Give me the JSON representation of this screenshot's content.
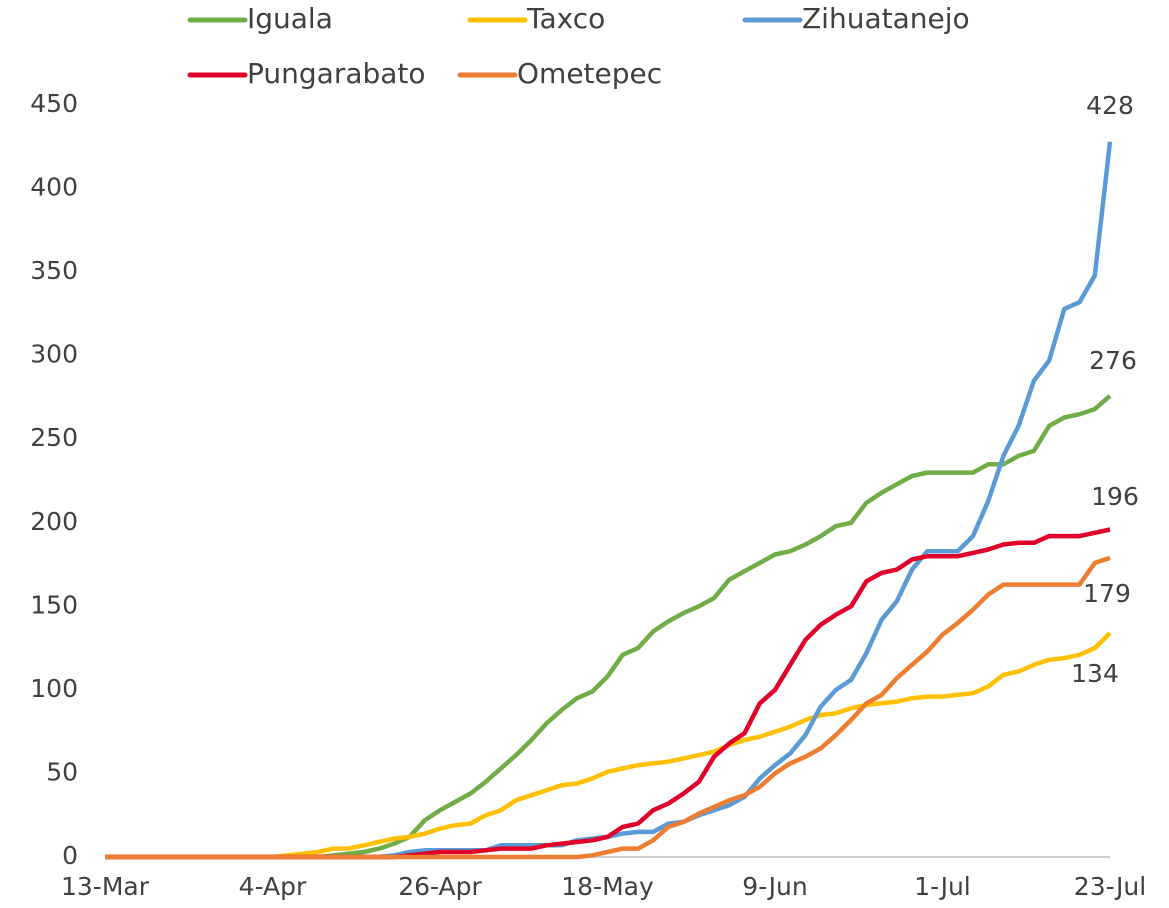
{
  "chart_data": {
    "type": "line",
    "categories": [
      "13-Mar",
      null,
      null,
      null,
      null,
      null,
      null,
      null,
      null,
      null,
      null,
      "4-Apr",
      null,
      null,
      null,
      null,
      null,
      null,
      null,
      null,
      null,
      null,
      "26-Apr",
      null,
      null,
      null,
      null,
      null,
      null,
      null,
      null,
      null,
      null,
      "18-May",
      null,
      null,
      null,
      null,
      null,
      null,
      null,
      null,
      null,
      null,
      "9-Jun",
      null,
      null,
      null,
      null,
      null,
      null,
      null,
      null,
      null,
      null,
      "1-Jul",
      null,
      null,
      null,
      null,
      null,
      null,
      null,
      null,
      null,
      null,
      "23-Jul"
    ],
    "series": [
      {
        "name": "Iguala",
        "color": "#70ad47",
        "values": [
          0,
          0,
          0,
          0,
          0,
          0,
          0,
          0,
          0,
          0,
          0,
          0,
          0,
          0,
          0,
          1,
          2,
          3,
          5,
          8,
          12,
          22,
          28,
          33,
          38,
          45,
          53,
          61,
          70,
          80,
          88,
          95,
          99,
          108,
          121,
          125,
          135,
          141,
          146,
          150,
          155,
          166,
          171,
          176,
          181,
          183,
          187,
          192,
          198,
          200,
          212,
          218,
          223,
          228,
          230,
          230,
          230,
          230,
          235,
          235,
          240,
          243,
          258,
          263,
          265,
          268,
          276
        ]
      },
      {
        "name": "Taxco",
        "color": "#ffc000",
        "values": [
          0,
          0,
          0,
          0,
          0,
          0,
          0,
          0,
          0,
          0,
          0,
          0,
          1,
          2,
          3,
          5,
          5,
          7,
          9,
          11,
          12,
          14,
          17,
          19,
          20,
          25,
          28,
          34,
          37,
          40,
          43,
          44,
          47,
          51,
          53,
          55,
          56,
          57,
          59,
          61,
          63,
          67,
          70,
          72,
          75,
          78,
          82,
          85,
          86,
          89,
          91,
          92,
          93,
          95,
          96,
          96,
          97,
          98,
          102,
          109,
          111,
          115,
          118,
          119,
          121,
          125,
          134
        ]
      },
      {
        "name": "Zihuatanejo",
        "color": "#5b9bd5",
        "values": [
          0,
          0,
          0,
          0,
          0,
          0,
          0,
          0,
          0,
          0,
          0,
          0,
          0,
          0,
          0,
          0,
          0,
          0,
          0,
          1,
          3,
          4,
          4,
          4,
          4,
          4,
          7,
          7,
          7,
          7,
          7,
          10,
          11,
          12,
          14,
          15,
          15,
          20,
          21,
          25,
          28,
          31,
          36,
          47,
          55,
          62,
          73,
          90,
          100,
          106,
          122,
          142,
          153,
          172,
          183,
          183,
          183,
          192,
          213,
          240,
          258,
          285,
          297,
          328,
          332,
          348,
          428
        ]
      },
      {
        "name": "Pungarabato",
        "color": "#e0002a",
        "values": [
          0,
          0,
          0,
          0,
          0,
          0,
          0,
          0,
          0,
          0,
          0,
          0,
          0,
          0,
          0,
          0,
          0,
          0,
          0,
          0,
          1,
          2,
          3,
          3,
          3,
          4,
          5,
          5,
          5,
          7,
          8,
          9,
          10,
          12,
          18,
          20,
          28,
          32,
          38,
          45,
          60,
          68,
          74,
          92,
          100,
          115,
          130,
          139,
          145,
          150,
          165,
          170,
          172,
          178,
          180,
          180,
          180,
          182,
          184,
          187,
          188,
          188,
          192,
          192,
          192,
          194,
          196
        ]
      },
      {
        "name": "Ometepec",
        "color": "#ed7d31",
        "values": [
          0,
          0,
          0,
          0,
          0,
          0,
          0,
          0,
          0,
          0,
          0,
          0,
          0,
          0,
          0,
          0,
          0,
          0,
          0,
          0,
          0,
          0,
          0,
          0,
          0,
          0,
          0,
          0,
          0,
          0,
          0,
          0,
          1,
          3,
          5,
          5,
          10,
          18,
          21,
          26,
          30,
          34,
          37,
          42,
          50,
          56,
          60,
          65,
          73,
          82,
          92,
          97,
          107,
          115,
          123,
          133,
          140,
          148,
          157,
          163,
          163,
          163,
          163,
          163,
          163,
          176,
          179
        ]
      }
    ],
    "ylim": [
      0,
      450
    ],
    "yticks": [
      0,
      50,
      100,
      150,
      200,
      250,
      300,
      350,
      400,
      450
    ],
    "grid": false
  }
}
